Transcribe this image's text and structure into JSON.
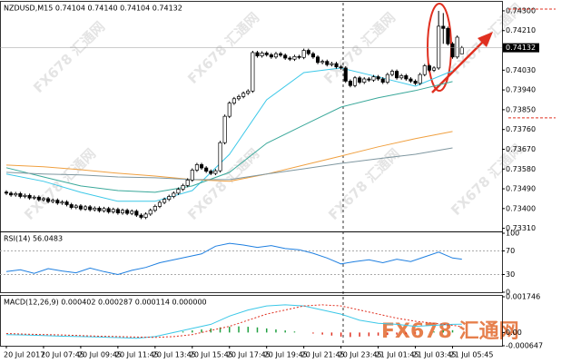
{
  "watermark": "FX678 汇通网",
  "chart_data": [
    {
      "type": "candlestick",
      "title": "NZDUSD,M15  0.74104 0.74140 0.74104 0.74132",
      "categories": [
        "20 Jul 2017",
        null,
        null,
        null,
        null,
        null,
        null,
        null,
        "20 Jul 07:45",
        null,
        null,
        null,
        null,
        null,
        null,
        null,
        "20 Jul 09:45",
        null,
        null,
        null,
        null,
        null,
        null,
        null,
        "20 Jul 11:45",
        null,
        null,
        null,
        null,
        null,
        null,
        null,
        "20 Jul 13:45",
        null,
        null,
        null,
        null,
        null,
        null,
        null,
        "20 Jul 15:45",
        null,
        null,
        null,
        null,
        null,
        null,
        null,
        "20 Jul 17:45",
        null,
        null,
        null,
        null,
        null,
        null,
        null,
        "20 Jul 19:45",
        null,
        null,
        null,
        null,
        null,
        null,
        null,
        "20 Jul 21:45",
        null,
        null,
        null,
        null,
        null,
        null,
        null,
        "20 Jul 23:45",
        null,
        null,
        null,
        null,
        null,
        null,
        null,
        "21 Jul 01:45",
        null,
        null,
        null,
        null,
        null,
        null,
        null,
        "21 Jul 03:45",
        null,
        null,
        null,
        null,
        null,
        null,
        null,
        "21 Jul 05:45",
        null,
        null
      ],
      "open": [
        0.73475,
        0.7347,
        0.73462,
        0.73468,
        0.73455,
        0.7346,
        0.73448,
        0.73452,
        0.7344,
        0.73445,
        0.73432,
        0.73438,
        0.73425,
        0.7343,
        0.73418,
        0.73405,
        0.73412,
        0.73398,
        0.73408,
        0.73395,
        0.73402,
        0.7339,
        0.734,
        0.73385,
        0.73396,
        0.7338,
        0.73392,
        0.73378,
        0.73388,
        0.7337,
        0.7336,
        0.73375,
        0.73392,
        0.7341,
        0.73428,
        0.73442,
        0.73455,
        0.7347,
        0.73488,
        0.73505,
        0.7353,
        0.73575,
        0.736,
        0.73585,
        0.7357,
        0.7356,
        0.73572,
        0.737,
        0.7382,
        0.7388,
        0.739,
        0.7391,
        0.73925,
        0.73935,
        0.7411,
        0.74095,
        0.74108,
        0.741,
        0.7409,
        0.74105,
        0.74098,
        0.74085,
        0.7408,
        0.74092,
        0.74088,
        0.7412,
        0.74105,
        0.7409,
        0.74065,
        0.7407,
        0.74055,
        0.7406,
        0.74045,
        0.7404,
        0.7398,
        0.7396,
        0.73995,
        0.73975,
        0.7399,
        0.73985,
        0.74,
        0.7399,
        0.73975,
        0.7401,
        0.74025,
        0.73995,
        0.74005,
        0.7399,
        0.7398,
        0.7397,
        0.7401,
        0.7405,
        0.7403,
        0.7404,
        0.7423,
        0.7422,
        0.7415,
        0.7409,
        0.74104
      ],
      "high": [
        0.73483,
        0.73478,
        0.73476,
        0.73476,
        0.73468,
        0.73468,
        0.7346,
        0.7346,
        0.73453,
        0.73453,
        0.73446,
        0.73446,
        0.73438,
        0.73438,
        0.73426,
        0.7342,
        0.7342,
        0.73416,
        0.73416,
        0.7341,
        0.7341,
        0.73408,
        0.73408,
        0.73404,
        0.73404,
        0.734,
        0.734,
        0.73396,
        0.73396,
        0.73378,
        0.73383,
        0.734,
        0.73418,
        0.73436,
        0.7345,
        0.73463,
        0.73478,
        0.73496,
        0.73513,
        0.73538,
        0.73583,
        0.73608,
        0.73608,
        0.73593,
        0.73578,
        0.7358,
        0.73708,
        0.73828,
        0.73888,
        0.73908,
        0.73918,
        0.73933,
        0.73943,
        0.74118,
        0.74118,
        0.74116,
        0.74116,
        0.74108,
        0.74113,
        0.74113,
        0.74106,
        0.74093,
        0.741,
        0.741,
        0.74128,
        0.74128,
        0.74113,
        0.74098,
        0.74078,
        0.74078,
        0.74068,
        0.74068,
        0.74053,
        0.74048,
        0.73988,
        0.74003,
        0.74003,
        0.73998,
        0.73998,
        0.74008,
        0.74008,
        0.73998,
        0.74018,
        0.74033,
        0.74033,
        0.74013,
        0.74013,
        0.73998,
        0.73988,
        0.74018,
        0.74058,
        0.74058,
        0.74048,
        0.743,
        0.7429,
        0.74228,
        0.74158,
        0.74188,
        0.7414
      ],
      "low": [
        0.73462,
        0.73454,
        0.73454,
        0.73447,
        0.73447,
        0.7344,
        0.7344,
        0.73432,
        0.73432,
        0.73424,
        0.73424,
        0.73417,
        0.73417,
        0.7341,
        0.73397,
        0.73397,
        0.7339,
        0.7339,
        0.73387,
        0.73387,
        0.73382,
        0.73382,
        0.73377,
        0.73377,
        0.73372,
        0.73372,
        0.7337,
        0.7337,
        0.73362,
        0.73352,
        0.73352,
        0.73367,
        0.73384,
        0.73402,
        0.7342,
        0.73434,
        0.73447,
        0.73462,
        0.7348,
        0.73497,
        0.73522,
        0.73567,
        0.73577,
        0.73562,
        0.73552,
        0.73552,
        0.73564,
        0.73692,
        0.73812,
        0.73872,
        0.73892,
        0.73902,
        0.73917,
        0.73927,
        0.74087,
        0.74087,
        0.74092,
        0.74082,
        0.74082,
        0.7409,
        0.74077,
        0.74072,
        0.74072,
        0.7408,
        0.7408,
        0.74097,
        0.74082,
        0.74057,
        0.74057,
        0.74047,
        0.74047,
        0.74037,
        0.74032,
        0.73972,
        0.73952,
        0.73952,
        0.73967,
        0.73967,
        0.73977,
        0.73977,
        0.73982,
        0.73967,
        0.73967,
        0.74002,
        0.73987,
        0.73987,
        0.73982,
        0.73972,
        0.73962,
        0.73962,
        0.74002,
        0.74022,
        0.74022,
        0.74032,
        0.7415,
        0.74142,
        0.74082,
        0.74082,
        0.74104
      ],
      "close": [
        0.7347,
        0.73462,
        0.73468,
        0.73455,
        0.7346,
        0.73448,
        0.73452,
        0.7344,
        0.73445,
        0.73432,
        0.73438,
        0.73425,
        0.7343,
        0.73418,
        0.73405,
        0.73412,
        0.73398,
        0.73408,
        0.73395,
        0.73402,
        0.7339,
        0.734,
        0.73385,
        0.73396,
        0.7338,
        0.73392,
        0.73378,
        0.73388,
        0.7337,
        0.7336,
        0.73375,
        0.73392,
        0.7341,
        0.73428,
        0.73442,
        0.73455,
        0.7347,
        0.73488,
        0.73505,
        0.7353,
        0.73575,
        0.736,
        0.73585,
        0.7357,
        0.7356,
        0.73572,
        0.737,
        0.7382,
        0.7388,
        0.739,
        0.7391,
        0.73925,
        0.73935,
        0.7411,
        0.74095,
        0.74108,
        0.741,
        0.7409,
        0.74105,
        0.74098,
        0.74085,
        0.7408,
        0.74092,
        0.74088,
        0.7412,
        0.74105,
        0.7409,
        0.74065,
        0.7407,
        0.74055,
        0.7406,
        0.74045,
        0.7404,
        0.7398,
        0.7396,
        0.73995,
        0.73975,
        0.7399,
        0.73985,
        0.74,
        0.7399,
        0.73975,
        0.7401,
        0.74025,
        0.73995,
        0.74005,
        0.7399,
        0.7398,
        0.7397,
        0.7401,
        0.7405,
        0.7403,
        0.7404,
        0.7423,
        0.7422,
        0.7415,
        0.7409,
        0.7418,
        0.74132
      ],
      "up_color": "#ffffff",
      "down_color": "#000000",
      "ylim": [
        0.73296,
        0.74337
      ],
      "yticks": [
        {
          "value": 0.743,
          "label": "0.74300"
        },
        {
          "value": 0.7421,
          "label": "0.74210"
        },
        {
          "value": 0.7403,
          "label": "0.74030"
        },
        {
          "value": 0.7394,
          "label": "0.73940"
        },
        {
          "value": 0.7385,
          "label": "0.73850"
        },
        {
          "value": 0.7376,
          "label": "0.73760"
        },
        {
          "value": 0.7367,
          "label": "0.73670"
        },
        {
          "value": 0.7358,
          "label": "0.73580"
        },
        {
          "value": 0.7349,
          "label": "0.73490"
        },
        {
          "value": 0.734,
          "label": "0.73400"
        },
        {
          "value": 0.7331,
          "label": "0.73310"
        }
      ],
      "last_price": 0.74132,
      "levels": [
        0.74308,
        0.73813
      ],
      "level_color": "#e03020",
      "moving_averages": [
        {
          "color": "#3cc8e8",
          "x": [
            0,
            8,
            16,
            24,
            32,
            40,
            48,
            56,
            64,
            72,
            80,
            88,
            96
          ],
          "values": [
            0.73557,
            0.73524,
            0.73474,
            0.73433,
            0.73433,
            0.73482,
            0.73647,
            0.73895,
            0.74019,
            0.7404,
            0.73999,
            0.73957,
            0.74027
          ]
        },
        {
          "color": "#3aa89a",
          "x": [
            0,
            8,
            16,
            24,
            32,
            40,
            48,
            56,
            64,
            72,
            80,
            88,
            96
          ],
          "values": [
            0.73586,
            0.73544,
            0.73503,
            0.73482,
            0.73474,
            0.73503,
            0.73565,
            0.73697,
            0.7378,
            0.73862,
            0.73904,
            0.73937,
            0.73978
          ]
        },
        {
          "color": "#f0a040",
          "x": [
            0,
            8,
            16,
            24,
            32,
            40,
            48,
            56,
            64,
            72,
            80,
            88,
            96
          ],
          "values": [
            0.73598,
            0.7359,
            0.73577,
            0.73561,
            0.73548,
            0.73532,
            0.73524,
            0.73557,
            0.73598,
            0.73639,
            0.73681,
            0.73718,
            0.73751
          ]
        },
        {
          "color": "#7f97a0",
          "x": [
            0,
            8,
            16,
            24,
            32,
            40,
            48,
            56,
            64,
            72,
            80,
            88,
            96
          ],
          "values": [
            0.73565,
            0.73557,
            0.73553,
            0.73544,
            0.7354,
            0.73532,
            0.73532,
            0.73557,
            0.73581,
            0.73606,
            0.73627,
            0.73647,
            0.73676
          ]
        }
      ]
    },
    {
      "type": "line",
      "title": "RSI(14) 56.0483",
      "color": "#1e7fe0",
      "x": [
        0,
        3,
        6,
        9,
        12,
        15,
        18,
        21,
        24,
        27,
        30,
        33,
        36,
        39,
        42,
        45,
        48,
        51,
        54,
        57,
        60,
        63,
        66,
        69,
        72,
        75,
        78,
        81,
        84,
        87,
        90,
        93,
        96,
        98
      ],
      "values": [
        35,
        38,
        32,
        40,
        36,
        33,
        41,
        35,
        30,
        37,
        42,
        50,
        55,
        60,
        65,
        78,
        83,
        80,
        76,
        79,
        74,
        72,
        66,
        58,
        48,
        52,
        55,
        50,
        56,
        52,
        60,
        68,
        58,
        56.0483
      ],
      "ylim": [
        0,
        100
      ],
      "yticks": [
        100,
        70,
        30,
        0
      ],
      "levels": [
        70,
        30
      ]
    },
    {
      "type": "macd",
      "title": "MACD(12,26,9) 0.000402 0.000287 0.000114 0.000000",
      "ylim": [
        -0.000647,
        0.001746
      ],
      "yticks": [
        0.001746,
        {
          "value": 0,
          "label": "0.00"
        },
        -0.000647
      ],
      "histogram": {
        "up_color": "#20a040",
        "down_color": "#e03020",
        "x": [
          36,
          38,
          40,
          42,
          44,
          46,
          48,
          50,
          52,
          54,
          56,
          58,
          60,
          62,
          64,
          66,
          68,
          70,
          72,
          74,
          76,
          78,
          80,
          82,
          84,
          86,
          88,
          90,
          92,
          94,
          96
        ],
        "values": [
          2e-05,
          5e-05,
          0.0001,
          0.00015,
          0.0002,
          0.00025,
          0.00028,
          0.0003,
          0.00028,
          0.00025,
          0.0002,
          0.00015,
          0.0001,
          5e-05,
          0,
          -5e-05,
          -0.0001,
          -0.00015,
          -0.0002,
          -0.00022,
          -0.0002,
          -0.00018,
          -0.00015,
          -0.00012,
          -0.0001,
          -8e-05,
          -5e-05,
          0,
          5e-05,
          0.0001,
          0.000114
        ]
      },
      "main": {
        "color": "#3cc8e8",
        "x": [
          0,
          4,
          8,
          12,
          16,
          20,
          24,
          28,
          32,
          36,
          40,
          44,
          48,
          52,
          56,
          60,
          64,
          68,
          72,
          76,
          80,
          84,
          88,
          92,
          96,
          98
        ],
        "values": [
          -0.0001,
          -0.00012,
          -0.00015,
          -0.00018,
          -0.0002,
          -0.00022,
          -0.00025,
          -0.00028,
          -0.0002,
          0,
          0.0002,
          0.0004,
          0.0008,
          0.0011,
          0.0013,
          0.00135,
          0.0013,
          0.0011,
          0.0009,
          0.0006,
          0.00045,
          0.0004,
          0.0003,
          0.00035,
          0.0004,
          0.000402
        ]
      },
      "signal": {
        "color": "#e03020",
        "x": [
          0,
          4,
          8,
          12,
          16,
          20,
          24,
          28,
          32,
          36,
          40,
          44,
          48,
          52,
          56,
          60,
          64,
          68,
          72,
          76,
          80,
          84,
          88,
          92,
          96,
          98
        ],
        "values": [
          -5e-05,
          -8e-05,
          -0.0001,
          -0.00012,
          -0.00015,
          -0.00018,
          -0.0002,
          -0.00022,
          -0.00024,
          -0.0002,
          -0.0001,
          0.0001,
          0.0003,
          0.0006,
          0.0009,
          0.0011,
          0.0013,
          0.00135,
          0.0013,
          0.0011,
          0.0009,
          0.0007,
          0.00055,
          0.00045,
          0.00035,
          0.000287
        ]
      }
    }
  ]
}
